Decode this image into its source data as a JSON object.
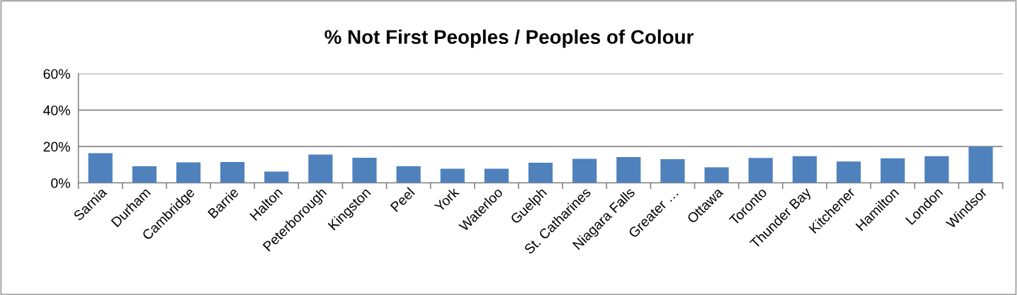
{
  "chart_data": {
    "type": "bar",
    "title": "% Not First Peoples / Peoples of Colour",
    "categories": [
      "Sarnia",
      "Durham",
      "Cambridge",
      "Barrie",
      "Halton",
      "Peterborough",
      "Kingston",
      "Peel",
      "York",
      "Waterloo",
      "Guelph",
      "St. Catharines",
      "Niagara Falls",
      "Greater …",
      "Ottawa",
      "Toronto",
      "Thunder Bay",
      "Kitchener",
      "Hamilton",
      "London",
      "Windsor"
    ],
    "values": [
      16.3,
      9.2,
      11.3,
      11.5,
      6.2,
      15.6,
      13.8,
      9.2,
      7.8,
      7.8,
      11.1,
      13.2,
      14.2,
      13.0,
      8.6,
      13.7,
      14.7,
      11.8,
      13.5,
      14.7,
      19.8
    ],
    "color": "#4f81bd",
    "ylim": [
      0,
      60
    ],
    "yticks": [
      {
        "value": 0,
        "label": "0%"
      },
      {
        "value": 20,
        "label": "20%"
      },
      {
        "value": 40,
        "label": "40%"
      },
      {
        "value": 60,
        "label": "60%"
      }
    ],
    "grid": "y"
  }
}
